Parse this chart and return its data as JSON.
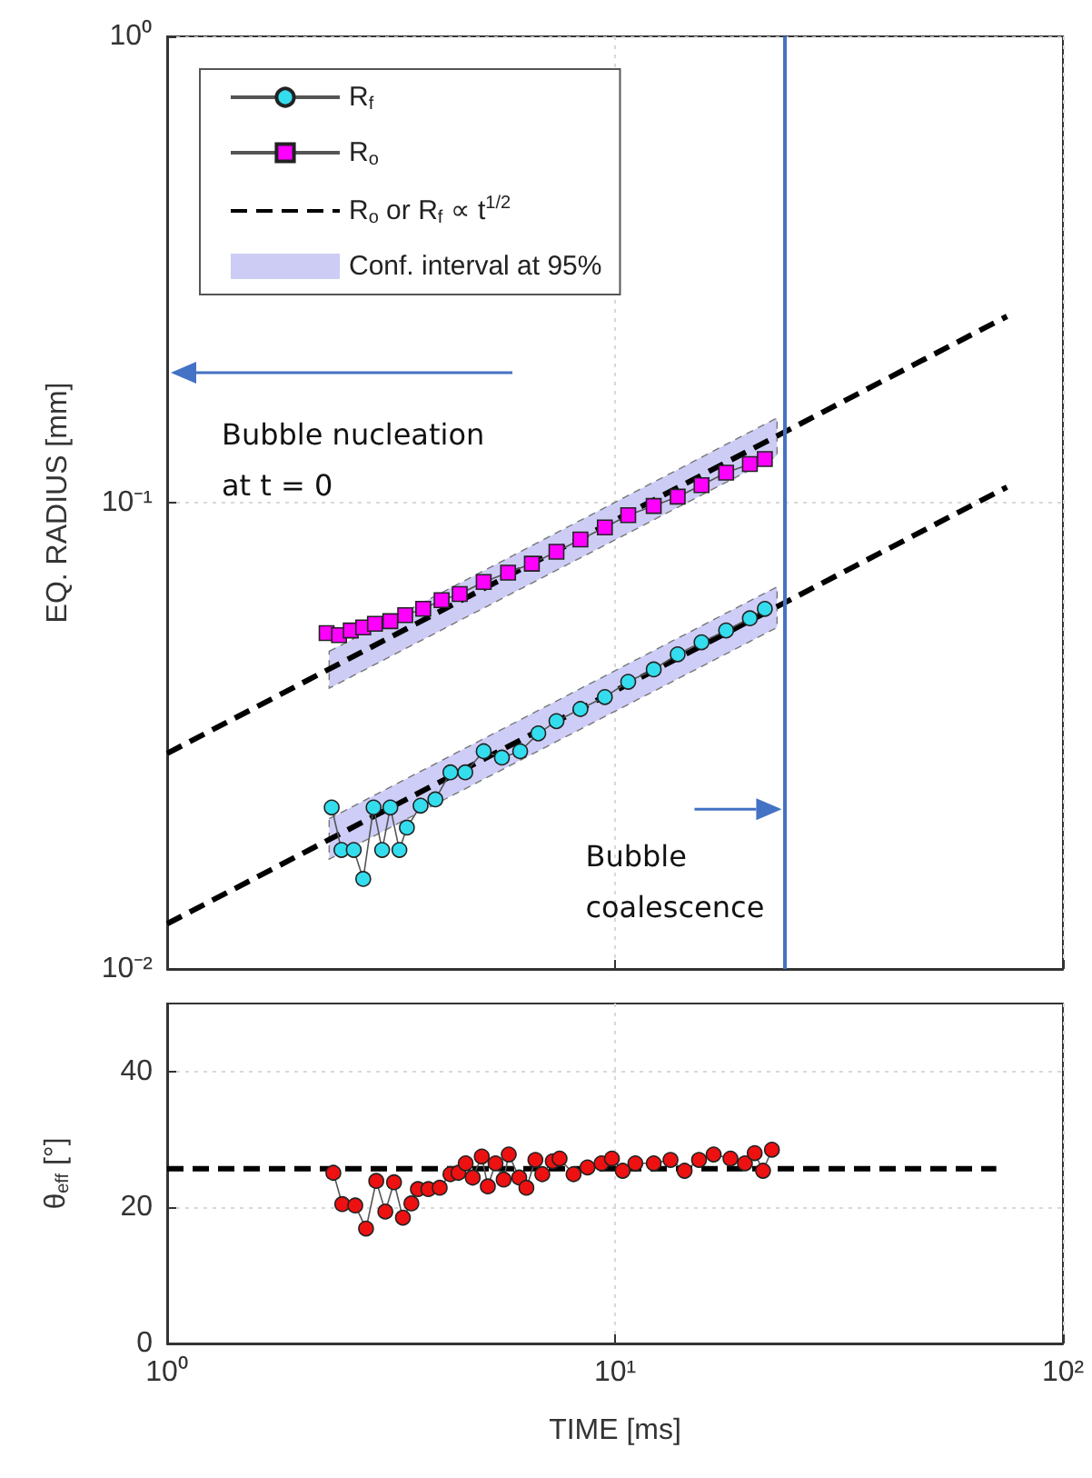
{
  "chart_data": [
    {
      "type": "line",
      "ylabel": "EQ. RADIUS [mm]",
      "log": "xy",
      "grid": true,
      "legend": "top left",
      "tick_labels": "y",
      "xlim": [
        1,
        100
      ],
      "xticks": [
        {
          "value": 1,
          "label": null
        },
        {
          "value": 10,
          "label": null
        },
        {
          "value": 100,
          "label": null
        }
      ],
      "ylim": [
        0.01,
        1
      ],
      "yticks": [
        {
          "value": 0.01,
          "label": "10⁻²"
        },
        {
          "value": 0.1,
          "label": "10⁻¹"
        },
        {
          "value": 1,
          "label": "10⁰"
        }
      ],
      "series": [
        {
          "name": "R$_{f}$",
          "color": "#33ddee",
          "marker": "circle",
          "x": [
            2.33,
            2.45,
            2.61,
            2.74,
            2.89,
            3.02,
            3.15,
            3.3,
            3.43,
            3.68,
            3.97,
            4.29,
            4.63,
            5.09,
            5.59,
            6.14,
            6.74,
            7.4,
            8.37,
            9.49,
            10.7,
            12.2,
            13.8,
            15.6,
            17.7,
            20.0,
            21.6
          ],
          "values": [
            0.0222,
            0.018,
            0.018,
            0.0156,
            0.0222,
            0.018,
            0.0222,
            0.018,
            0.0201,
            0.0224,
            0.0231,
            0.0264,
            0.0264,
            0.0293,
            0.0284,
            0.0293,
            0.032,
            0.034,
            0.0361,
            0.0383,
            0.0413,
            0.0439,
            0.0473,
            0.0502,
            0.0532,
            0.0565,
            0.0592
          ]
        },
        {
          "name": "R$_{o}$",
          "color": "#ff00ff",
          "marker": "square",
          "x": [
            2.27,
            2.42,
            2.57,
            2.74,
            2.91,
            3.15,
            3.4,
            3.73,
            4.1,
            4.5,
            5.09,
            5.77,
            6.52,
            7.4,
            8.37,
            9.49,
            10.7,
            12.2,
            13.8,
            15.6,
            17.7,
            20.0,
            21.6
          ],
          "values": [
            0.0525,
            0.052,
            0.0532,
            0.054,
            0.055,
            0.0557,
            0.0574,
            0.0592,
            0.0618,
            0.0637,
            0.0676,
            0.0708,
            0.074,
            0.0785,
            0.0834,
            0.0885,
            0.094,
            0.0984,
            0.103,
            0.109,
            0.116,
            0.121,
            0.124
          ]
        },
        {
          "name": "R$_{o}$ or R$_{f}$ ∝ t$^{1/2}$",
          "color": "#000000",
          "marker": "none",
          "line_style": "dashed",
          "x": [
            1,
            75
          ],
          "values": [
            0.029,
            0.251
          ]
        },
        {
          "color": "#000000",
          "marker": "none",
          "line_style": "dashed",
          "x": [
            1,
            75
          ],
          "values": [
            0.0125,
            0.108
          ]
        },
        {
          "name": "Conf. interval at 95%",
          "color": "#ccccf5",
          "marker": "none",
          "x": [
            2.3,
            23
          ],
          "values": [
            null,
            null
          ],
          "lower": [
            0.04,
            0.126
          ],
          "upper": [
            0.048,
            0.152
          ]
        },
        {
          "color": "#cdcdf7",
          "marker": "none",
          "x": [
            2.3,
            23
          ],
          "values": [
            null,
            null
          ],
          "lower": [
            0.0172,
            0.054
          ],
          "upper": [
            0.021,
            0.066
          ]
        }
      ],
      "ref_lines": [
        {
          "axis": "x",
          "value": 24,
          "color": "#4472c4"
        }
      ],
      "annotations": [
        "Bubble nucleation at t = 0",
        {
          "text": "Bubble coalescence",
          "x": 24,
          "y": 0.022
        }
      ]
    },
    {
      "type": "line",
      "xlabel": "TIME [ms]",
      "ylabel": "θ$_{eff}$ [°]",
      "log": "x",
      "grid": true,
      "xlim": [
        1,
        100
      ],
      "xticks": [
        {
          "value": 1,
          "label": "10⁰"
        },
        {
          "value": 10,
          "label": "10¹"
        },
        {
          "value": 100,
          "label": "10²"
        }
      ],
      "ylim": [
        0,
        50
      ],
      "yticks": [
        0,
        20,
        40
      ],
      "series": [
        {
          "color": "#ee1111",
          "marker": "circle",
          "x": [
            2.35,
            2.46,
            2.63,
            2.78,
            2.93,
            3.07,
            3.21,
            3.36,
            3.51,
            3.63,
            3.83,
            4.06,
            4.29,
            4.47,
            4.64,
            4.81,
            5.04,
            5.2,
            5.41,
            5.64,
            5.79,
            6.11,
            6.34,
            6.64,
            6.88,
            7.26,
            7.52,
            8.08,
            8.68,
            9.33,
            9.84,
            10.4,
            11.1,
            12.2,
            13.3,
            14.3,
            15.4,
            16.6,
            18.1,
            19.5,
            20.5,
            21.4,
            22.4
          ],
          "values": [
            25.1,
            20.5,
            20.3,
            16.9,
            23.9,
            19.4,
            23.7,
            18.5,
            20.6,
            22.7,
            22.7,
            22.9,
            24.9,
            25.1,
            26.5,
            24.4,
            27.5,
            23.1,
            26.5,
            24.1,
            27.8,
            24.4,
            22.9,
            27.0,
            24.9,
            26.8,
            27.2,
            24.9,
            25.9,
            26.5,
            27.2,
            25.4,
            26.5,
            26.5,
            27.0,
            25.4,
            27.0,
            27.8,
            27.2,
            26.5,
            28.0,
            25.4,
            28.5
          ]
        },
        {
          "color": "#000000",
          "marker": "none",
          "line_style": "dashed",
          "x": [
            1,
            71
          ],
          "values": [
            25.7,
            25.7
          ]
        }
      ]
    }
  ]
}
